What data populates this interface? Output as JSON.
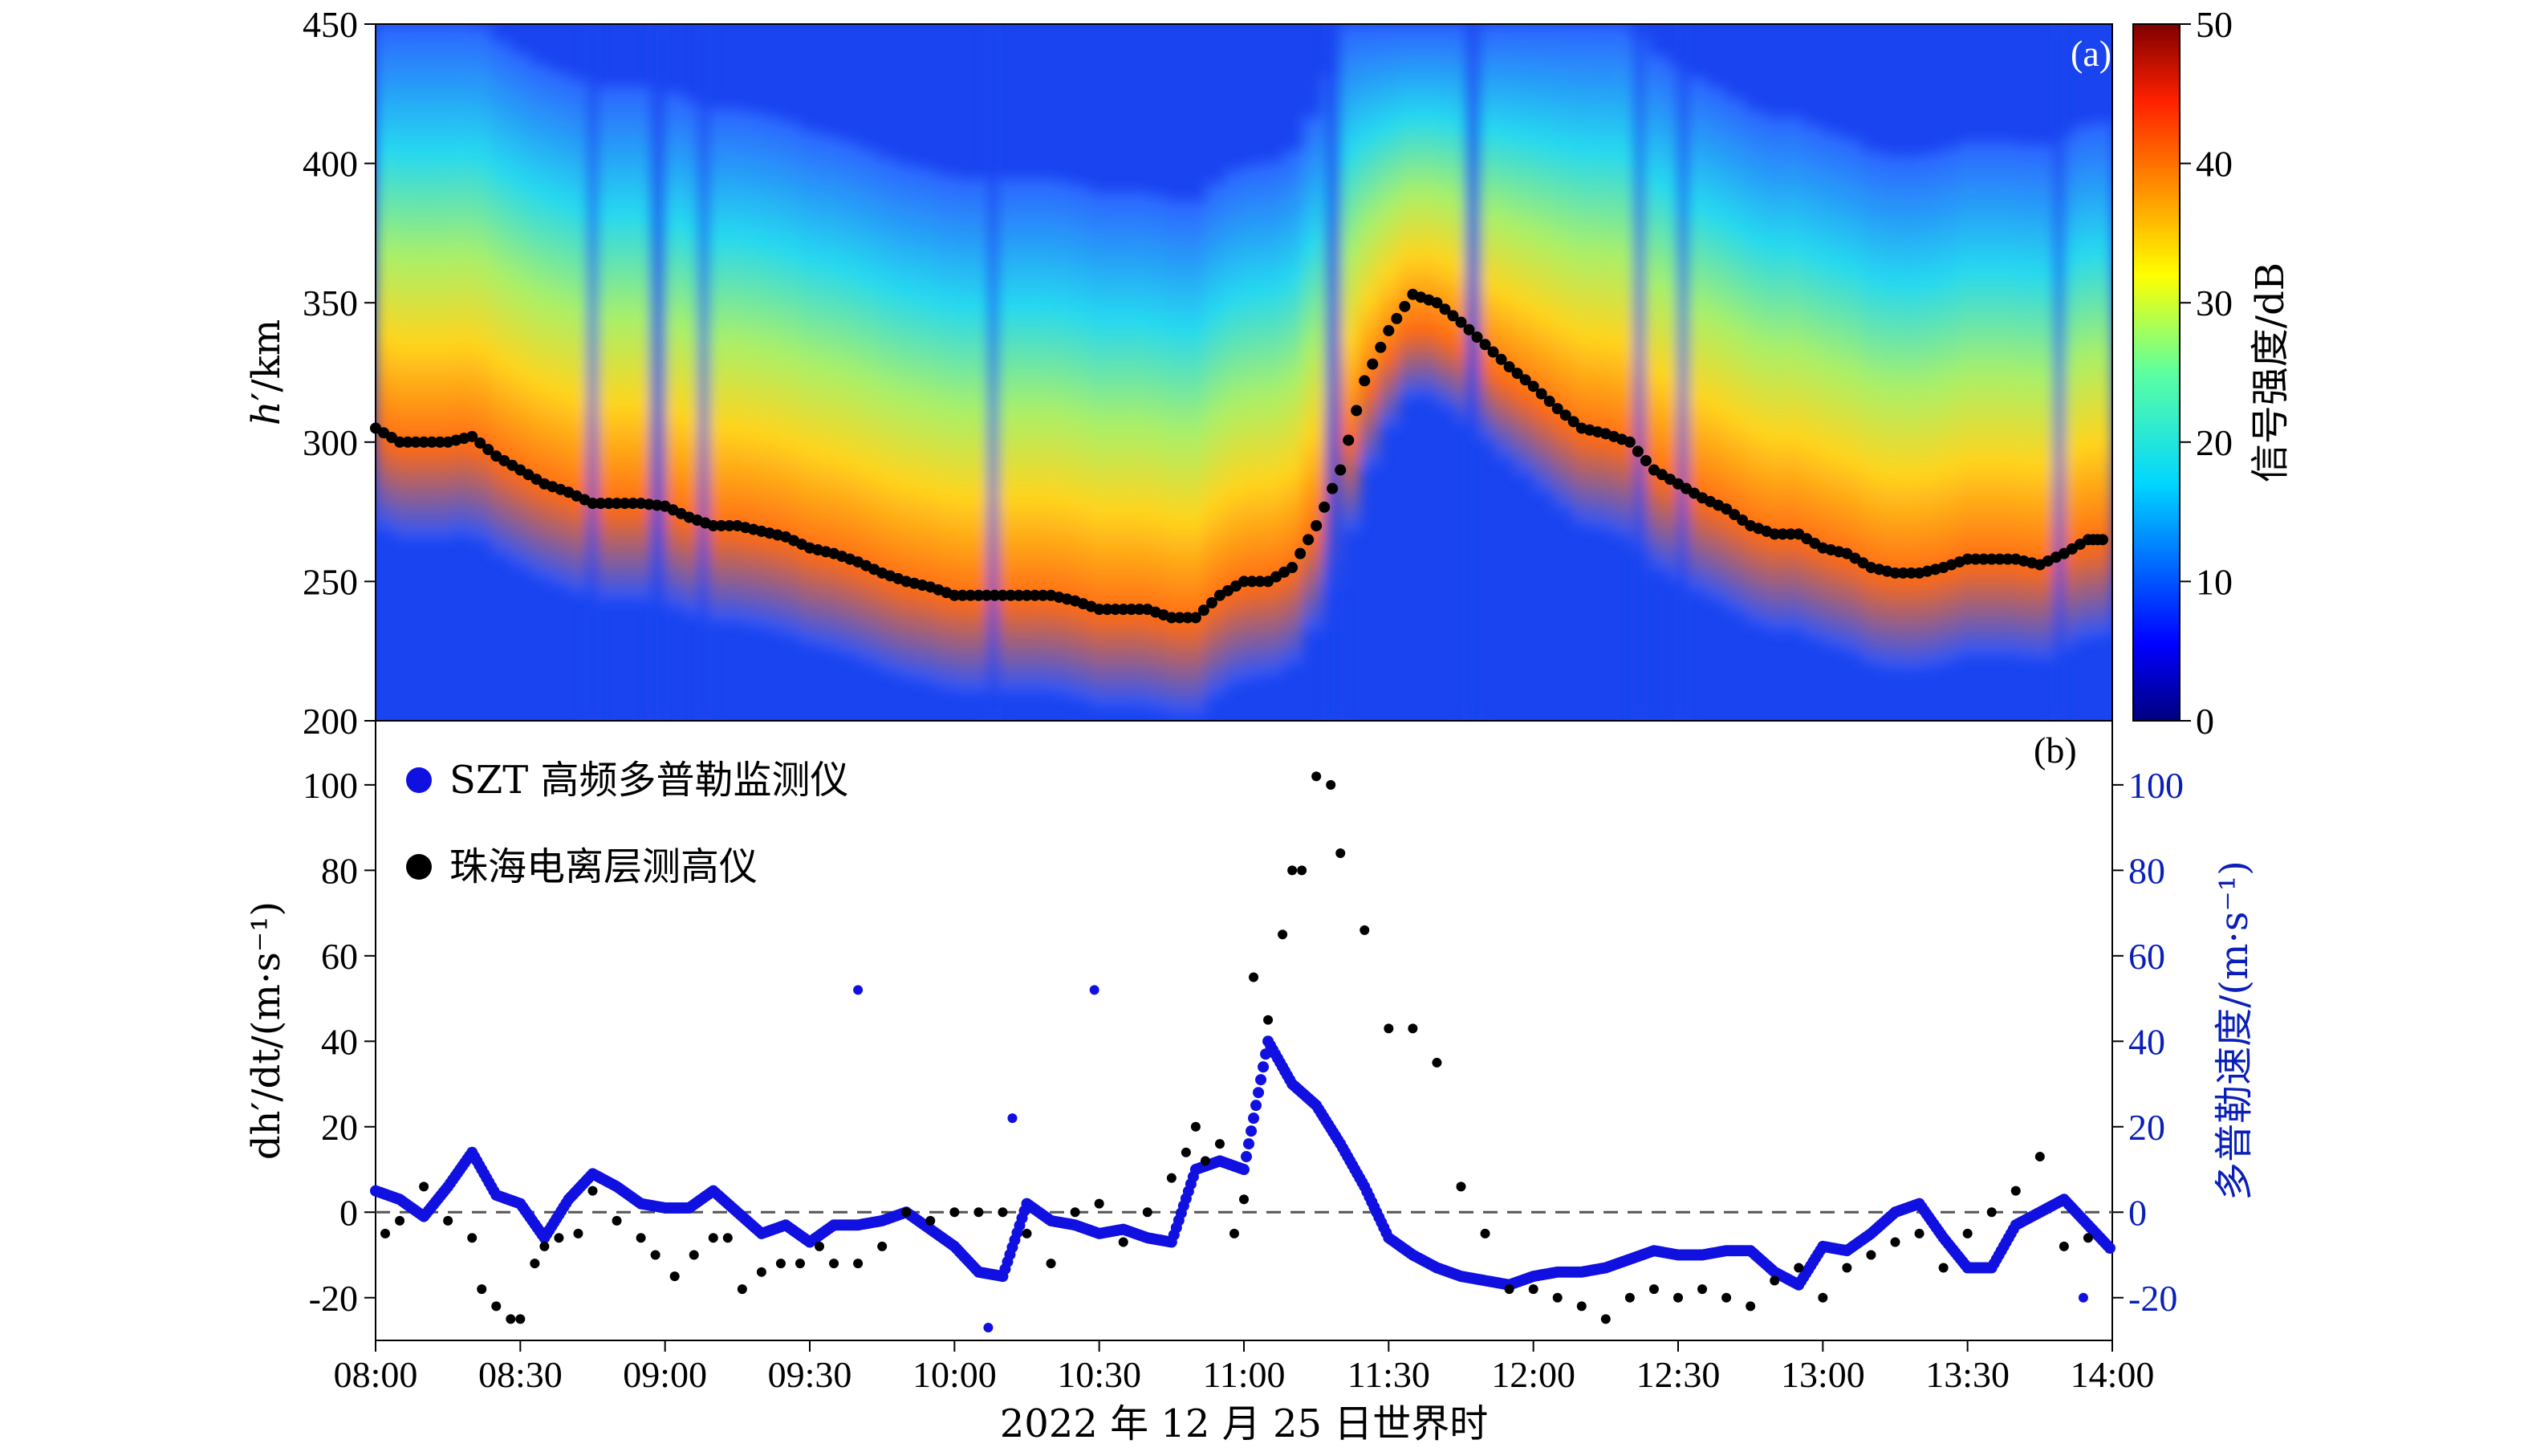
{
  "chart_data": [
    {
      "type": "heatmap",
      "panel_label": "(a)",
      "ylabel_italic": "h",
      "ylabel_rest": "′/km",
      "ylim": [
        200,
        450
      ],
      "yticks": [
        200,
        250,
        300,
        350,
        400,
        450
      ],
      "colorbar": {
        "label": "信号强度/dB",
        "range": [
          0,
          50
        ],
        "ticks": [
          0,
          10,
          20,
          30,
          40,
          50
        ]
      },
      "series": [
        {
          "name": "珠海电离层测高仪",
          "color": "#000000",
          "x_minutes": [
            0,
            5,
            10,
            15,
            20,
            25,
            30,
            35,
            40,
            45,
            50,
            55,
            60,
            65,
            70,
            75,
            80,
            85,
            90,
            95,
            100,
            105,
            110,
            115,
            120,
            125,
            130,
            135,
            140,
            145,
            150,
            155,
            160,
            165,
            170,
            175,
            180,
            185,
            190,
            195,
            200,
            205,
            210,
            215,
            220,
            225,
            230,
            235,
            240,
            245,
            250,
            255,
            260,
            265,
            270,
            275,
            280,
            285,
            290,
            295,
            300,
            305,
            310,
            315,
            320,
            325,
            330,
            335,
            340,
            345,
            350,
            355,
            358
          ],
          "h_km": [
            305,
            300,
            300,
            300,
            302,
            295,
            290,
            285,
            282,
            278,
            278,
            278,
            277,
            273,
            270,
            270,
            268,
            266,
            262,
            260,
            257,
            253,
            250,
            248,
            245,
            245,
            245,
            245,
            245,
            243,
            240,
            240,
            240,
            237,
            237,
            245,
            250,
            250,
            255,
            270,
            290,
            322,
            340,
            353,
            350,
            343,
            335,
            327,
            320,
            312,
            305,
            303,
            300,
            290,
            285,
            280,
            276,
            270,
            267,
            267,
            262,
            260,
            255,
            253,
            253,
            255,
            258,
            258,
            258,
            256,
            260,
            265,
            265
          ]
        }
      ]
    },
    {
      "type": "scatter",
      "panel_label": "(b)",
      "xlabel": "2022 年 12 月 25 日世界时",
      "xticks": [
        "08:00",
        "08:30",
        "09:00",
        "09:30",
        "10:00",
        "10:30",
        "11:00",
        "11:30",
        "12:00",
        "12:30",
        "13:00",
        "13:30",
        "14:00"
      ],
      "x_range_minutes": [
        0,
        360
      ],
      "ylabel_left": "dh′/dt/(m·s⁻¹)",
      "ylabel_right": "多普勒速度/(m·s⁻¹)",
      "ylim": [
        -30,
        115
      ],
      "yticks_left": [
        -20,
        0,
        20,
        40,
        60,
        80,
        100
      ],
      "yticks_right": [
        -20,
        0,
        20,
        40,
        60,
        80,
        100
      ],
      "zero_line": true,
      "legend": {
        "placement": "top-left"
      },
      "series": [
        {
          "name": "SZT 高频多普勒监测仪",
          "color": "#1010e0",
          "x_minutes": [
            0,
            5,
            10,
            15,
            20,
            25,
            30,
            35,
            40,
            45,
            50,
            55,
            60,
            65,
            70,
            75,
            80,
            85,
            90,
            95,
            100,
            105,
            110,
            115,
            120,
            125,
            130,
            135,
            140,
            145,
            150,
            155,
            160,
            165,
            170,
            175,
            180,
            185,
            190,
            195,
            200,
            205,
            210,
            215,
            220,
            225,
            230,
            235,
            240,
            245,
            250,
            255,
            260,
            265,
            270,
            275,
            280,
            285,
            290,
            295,
            300,
            305,
            310,
            315,
            320,
            325,
            330,
            335,
            340,
            345,
            350,
            355,
            360
          ],
          "values": [
            5,
            3,
            -1,
            6,
            14,
            4,
            2,
            -6,
            3,
            9,
            6,
            2,
            1,
            1,
            5,
            0,
            -5,
            -3,
            -7,
            -3,
            -3,
            -2,
            0,
            -4,
            -8,
            -14,
            -15,
            2,
            -2,
            -3,
            -5,
            -4,
            -6,
            -7,
            10,
            12,
            10,
            40,
            30,
            25,
            16,
            6,
            -6,
            -10,
            -13,
            -15,
            -16,
            -17,
            -15,
            -14,
            -14,
            -13,
            -11,
            -9,
            -10,
            -10,
            -9,
            -9,
            -14,
            -17,
            -8,
            -9,
            -5,
            0,
            2,
            -6,
            -13,
            -13,
            -3,
            0,
            3,
            -3,
            -9
          ]
        },
        {
          "name": "珠海电离层测高仪",
          "color": "#000000",
          "x_minutes": [
            2,
            5,
            10,
            15,
            20,
            22,
            25,
            28,
            30,
            33,
            35,
            38,
            42,
            45,
            50,
            55,
            58,
            62,
            66,
            70,
            73,
            76,
            80,
            84,
            88,
            92,
            95,
            100,
            105,
            110,
            115,
            120,
            125,
            130,
            135,
            140,
            145,
            150,
            155,
            160,
            165,
            168,
            170,
            172,
            175,
            178,
            180,
            182,
            185,
            188,
            190,
            192,
            195,
            198,
            200,
            205,
            210,
            215,
            220,
            225,
            230,
            235,
            240,
            245,
            250,
            255,
            260,
            265,
            270,
            275,
            280,
            285,
            290,
            295,
            300,
            305,
            310,
            315,
            320,
            325,
            330,
            335,
            340,
            345,
            350,
            355
          ],
          "values": [
            -5,
            -2,
            6,
            -2,
            -6,
            -18,
            -22,
            -25,
            -25,
            -12,
            -8,
            -6,
            -5,
            5,
            -2,
            -6,
            -10,
            -15,
            -10,
            -6,
            -6,
            -18,
            -14,
            -12,
            -12,
            -8,
            -12,
            -12,
            -8,
            0,
            -2,
            0,
            0,
            0,
            -5,
            -12,
            0,
            2,
            -7,
            0,
            8,
            14,
            20,
            12,
            16,
            -5,
            3,
            55,
            45,
            65,
            80,
            80,
            102,
            100,
            84,
            66,
            43,
            43,
            35,
            6,
            -5,
            -18,
            -18,
            -20,
            -22,
            -25,
            -20,
            -18,
            -20,
            -18,
            -20,
            -22,
            -16,
            -13,
            -20,
            -13,
            -10,
            -7,
            -5,
            -13,
            -5,
            0,
            5,
            13,
            -8,
            -6
          ],
          "note_extra": "additional black points omitted"
        }
      ]
    }
  ]
}
